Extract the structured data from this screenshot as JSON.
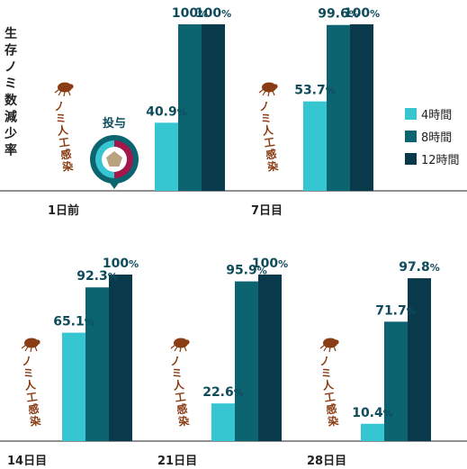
{
  "chart_data": {
    "type": "bar",
    "ylabel": "生存ノミ数減少率",
    "ylim": [
      0,
      100
    ],
    "categories": [
      "1日前",
      "7日目",
      "14日目",
      "21日目",
      "28日目"
    ],
    "series": [
      {
        "name": "4時間",
        "color": "#35c6d1",
        "values": [
          40.9,
          53.7,
          65.1,
          22.6,
          10.4
        ]
      },
      {
        "name": "8時間",
        "color": "#0d6471",
        "values": [
          100,
          99.6,
          92.3,
          95.9,
          71.7
        ]
      },
      {
        "name": "12時間",
        "color": "#093a4c",
        "values": [
          100,
          100,
          100,
          100,
          97.8
        ]
      }
    ],
    "value_labels": [
      [
        "40.9",
        "100",
        "100"
      ],
      [
        "53.7",
        "99.6",
        "100"
      ],
      [
        "65.1",
        "92.3",
        "100"
      ],
      [
        "22.6",
        "95.9",
        "100"
      ],
      [
        "10.4",
        "71.7",
        "97.8"
      ]
    ],
    "value_unit": "%",
    "annotation_flea": "ノミ人工感染",
    "annotation_dose": "投与",
    "legend_position": "right",
    "grid": false
  },
  "colors": {
    "flea": "#8a3d14",
    "dose_ring_left": "#35c6d1",
    "dose_ring_right": "#a3174a",
    "dose_center": "#b9a27e",
    "dose_pin": "#0d6471",
    "axis": "#222222"
  },
  "icons": {
    "flea": "flea-icon",
    "dose": "dose-pin-icon"
  }
}
